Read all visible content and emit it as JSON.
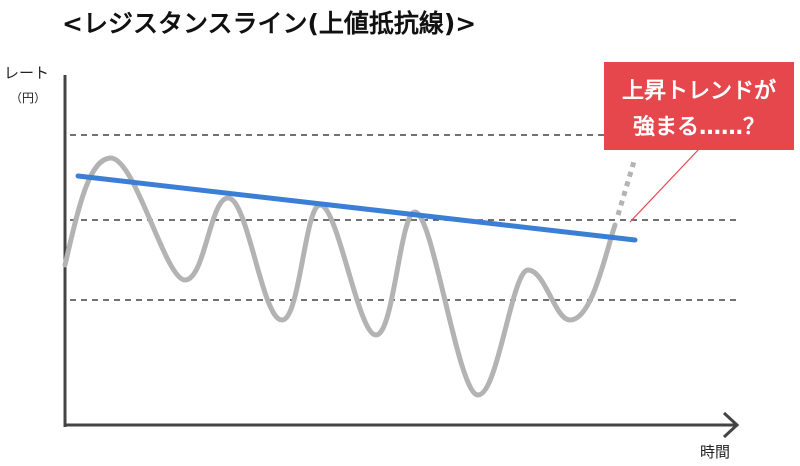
{
  "title": "<レジスタンスライン(上値抵抗線)>",
  "y_axis": {
    "label": "レート",
    "unit": "（円）"
  },
  "x_axis": {
    "label": "時間"
  },
  "callout": {
    "line1": "上昇トレンドが",
    "line2": "強まる……？"
  },
  "colors": {
    "price_line": "#b3b3b3",
    "resistance_line": "#3a7fd5",
    "dashed_lines": "#444444",
    "callout_bg": "#e6474d",
    "axis": "#444444"
  },
  "elements": [
    "price-curve",
    "resistance-line",
    "horizontal-dashed-lines",
    "breakout-dotted-extension",
    "callout-box"
  ]
}
